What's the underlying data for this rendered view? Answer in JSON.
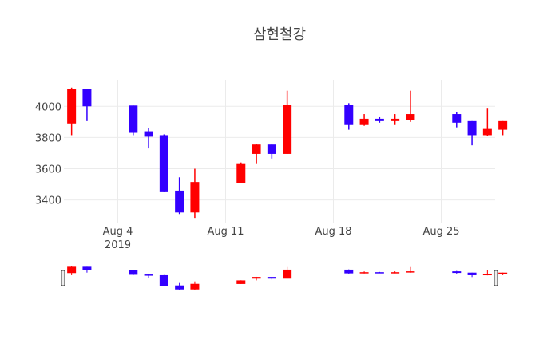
{
  "chart_data": {
    "type": "candlestick",
    "title": "삼현철강",
    "increasing_color": "#ff0000",
    "decreasing_color": "#3300ff",
    "x_tick_labels": [
      {
        "date": "2019-08-04",
        "label": "Aug 4",
        "sublabel": "2019"
      },
      {
        "date": "2019-08-11",
        "label": "Aug 11",
        "sublabel": ""
      },
      {
        "date": "2019-08-18",
        "label": "Aug 18",
        "sublabel": ""
      },
      {
        "date": "2019-08-25",
        "label": "Aug 25",
        "sublabel": ""
      }
    ],
    "y_ticks": [
      3400,
      3600,
      3800,
      4000
    ],
    "x_range": [
      "2019-07-31T12:00",
      "2019-08-28T12:00"
    ],
    "y_range": [
      3250,
      4170
    ],
    "grid": true,
    "rangeslider": true,
    "candles": [
      {
        "date": "2019-08-01",
        "open": 3890,
        "high": 4120,
        "low": 3815,
        "close": 4110
      },
      {
        "date": "2019-08-02",
        "open": 4110,
        "high": 4110,
        "low": 3905,
        "close": 4000
      },
      {
        "date": "2019-08-05",
        "open": 4005,
        "high": 4005,
        "low": 3815,
        "close": 3830
      },
      {
        "date": "2019-08-06",
        "open": 3840,
        "high": 3860,
        "low": 3730,
        "close": 3805
      },
      {
        "date": "2019-08-07",
        "open": 3815,
        "high": 3820,
        "low": 3450,
        "close": 3450
      },
      {
        "date": "2019-08-08",
        "open": 3460,
        "high": 3545,
        "low": 3310,
        "close": 3320
      },
      {
        "date": "2019-08-09",
        "open": 3320,
        "high": 3600,
        "low": 3285,
        "close": 3515
      },
      {
        "date": "2019-08-12",
        "open": 3510,
        "high": 3640,
        "low": 3510,
        "close": 3635
      },
      {
        "date": "2019-08-13",
        "open": 3695,
        "high": 3760,
        "low": 3635,
        "close": 3755
      },
      {
        "date": "2019-08-14",
        "open": 3755,
        "high": 3755,
        "low": 3665,
        "close": 3695
      },
      {
        "date": "2019-08-15",
        "open": 3695,
        "high": 4100,
        "low": 3695,
        "close": 4010
      },
      {
        "date": "2019-08-19",
        "open": 4010,
        "high": 4020,
        "low": 3850,
        "close": 3880
      },
      {
        "date": "2019-08-20",
        "open": 3880,
        "high": 3950,
        "low": 3875,
        "close": 3920
      },
      {
        "date": "2019-08-21",
        "open": 3920,
        "high": 3930,
        "low": 3895,
        "close": 3905
      },
      {
        "date": "2019-08-22",
        "open": 3905,
        "high": 3950,
        "low": 3880,
        "close": 3920
      },
      {
        "date": "2019-08-23",
        "open": 3910,
        "high": 4100,
        "low": 3900,
        "close": 3950
      },
      {
        "date": "2019-08-26",
        "open": 3950,
        "high": 3965,
        "low": 3865,
        "close": 3895
      },
      {
        "date": "2019-08-27",
        "open": 3905,
        "high": 3905,
        "low": 3750,
        "close": 3815
      },
      {
        "date": "2019-08-28",
        "open": 3815,
        "high": 3985,
        "low": 3810,
        "close": 3855
      },
      {
        "date": "2019-08-29",
        "open": 3850,
        "high": 3905,
        "low": 3815,
        "close": 3905
      }
    ]
  }
}
